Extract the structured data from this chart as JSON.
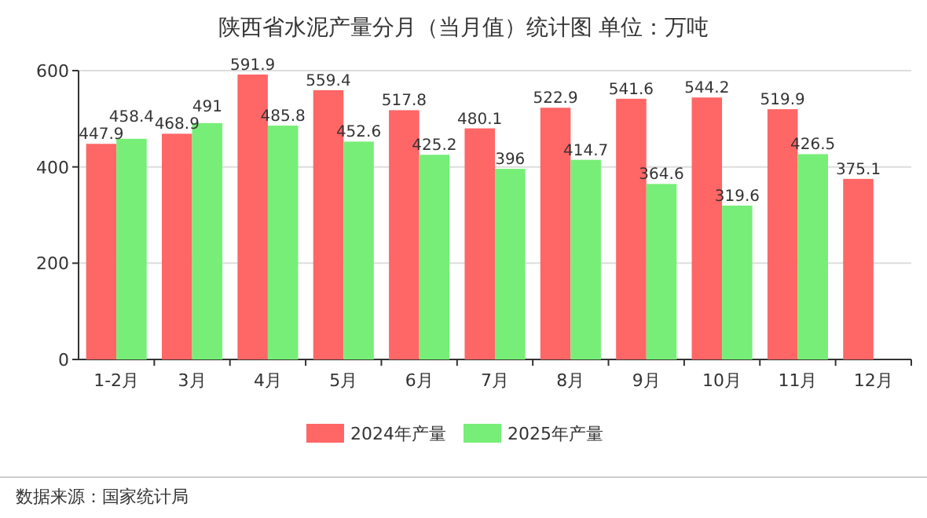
{
  "chart_data": {
    "type": "bar",
    "title": "陕西省水泥产量分月（当月值）统计图 单位：万吨",
    "categories": [
      "1-2月",
      "3月",
      "4月",
      "5月",
      "6月",
      "7月",
      "8月",
      "9月",
      "10月",
      "11月",
      "12月"
    ],
    "series": [
      {
        "name": "2024年产量",
        "color": "#ff6666",
        "values": [
          447.9,
          468.9,
          591.9,
          559.4,
          517.8,
          480.1,
          522.9,
          541.6,
          544.2,
          519.9,
          375.1
        ]
      },
      {
        "name": "2025年产量",
        "color": "#77ee77",
        "values": [
          458.4,
          491,
          485.8,
          452.6,
          425.2,
          396,
          414.7,
          364.6,
          319.6,
          426.5,
          null
        ]
      }
    ],
    "ylim": [
      0,
      600
    ],
    "yticks": [
      0,
      200,
      400,
      600
    ],
    "grid": "y",
    "legend": "bottom",
    "data_labels": true,
    "annotations": [
      "数据来源：国家统计局"
    ]
  }
}
